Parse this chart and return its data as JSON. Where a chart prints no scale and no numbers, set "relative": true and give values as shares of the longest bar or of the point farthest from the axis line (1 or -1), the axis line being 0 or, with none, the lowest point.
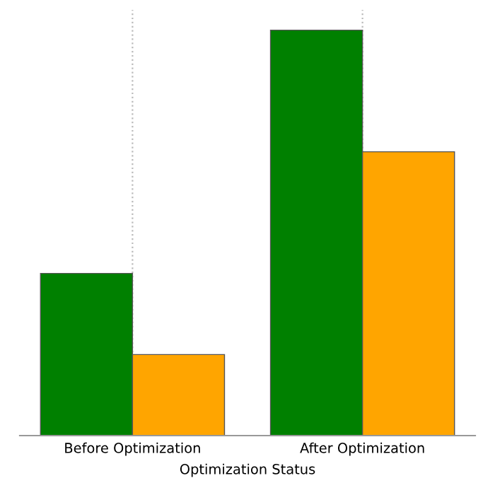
{
  "chart_data": {
    "type": "bar",
    "xlabel": "Optimization Status",
    "categories": [
      "Before Optimization",
      "After Optimization"
    ],
    "series": [
      {
        "color": "#008000",
        "values": [
          0.4,
          1
        ]
      },
      {
        "color": "#ffa500",
        "values": [
          0.2,
          0.7
        ]
      }
    ],
    "relative": true,
    "grid": "x",
    "legend": false
  }
}
